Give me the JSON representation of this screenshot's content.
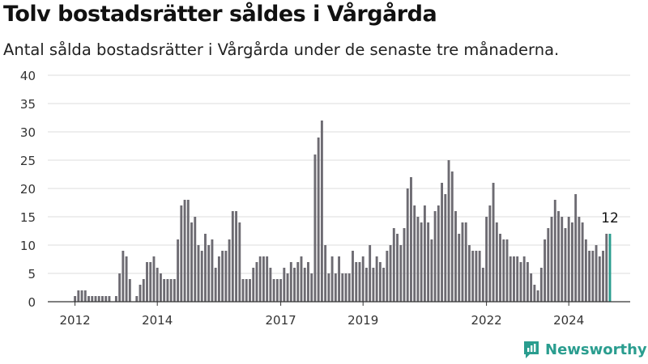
{
  "title": "Tolv bostadsrätter såldes i Vårgårda",
  "subtitle": "Antal sålda bostadsrätter i Vårgårda under de senaste tre månaderna.",
  "brand": "Newsworthy",
  "colors": {
    "bar": "#6d6b72",
    "highlight": "#2a9d8f",
    "grid": "#dddddd",
    "brand": "#2a9d8f"
  },
  "chart_data": {
    "type": "bar",
    "title": "Tolv bostadsrätter såldes i Vårgårda",
    "xlabel": "",
    "ylabel": "",
    "ylim": [
      0,
      40
    ],
    "yticks": [
      0,
      5,
      10,
      15,
      20,
      25,
      30,
      35,
      40
    ],
    "xticks": [
      {
        "label": "2012",
        "x": 2012.0
      },
      {
        "label": "2014",
        "x": 2014.0
      },
      {
        "label": "2017",
        "x": 2017.0
      },
      {
        "label": "2019",
        "x": 2019.0
      },
      {
        "label": "2022",
        "x": 2022.0
      },
      {
        "label": "2024",
        "x": 2024.0
      }
    ],
    "x_start": 2012.0,
    "x_step_months": 1,
    "values": [
      1,
      2,
      2,
      2,
      1,
      1,
      1,
      1,
      1,
      1,
      1,
      0,
      1,
      5,
      9,
      8,
      4,
      0,
      1,
      3,
      4,
      7,
      7,
      8,
      6,
      5,
      4,
      4,
      4,
      4,
      11,
      17,
      18,
      18,
      14,
      15,
      10,
      9,
      12,
      10,
      11,
      6,
      8,
      9,
      9,
      11,
      16,
      16,
      14,
      4,
      4,
      4,
      6,
      7,
      8,
      8,
      8,
      6,
      4,
      4,
      4,
      6,
      5,
      7,
      6,
      7,
      8,
      6,
      7,
      5,
      26,
      29,
      32,
      10,
      5,
      8,
      5,
      8,
      5,
      5,
      5,
      9,
      7,
      7,
      8,
      6,
      10,
      6,
      8,
      7,
      6,
      9,
      10,
      13,
      12,
      10,
      13,
      20,
      22,
      17,
      15,
      14,
      17,
      14,
      11,
      16,
      17,
      21,
      19,
      25,
      23,
      16,
      12,
      14,
      14,
      10,
      9,
      9,
      9,
      6,
      15,
      17,
      21,
      14,
      12,
      11,
      11,
      8,
      8,
      8,
      7,
      8,
      7,
      5,
      3,
      2,
      6,
      11,
      13,
      15,
      18,
      16,
      15,
      13,
      15,
      14,
      19,
      15,
      14,
      11,
      9,
      9,
      10,
      8,
      9,
      12,
      12
    ],
    "highlight_last": true,
    "annotations": [
      {
        "text": "12",
        "target": "last"
      }
    ]
  }
}
